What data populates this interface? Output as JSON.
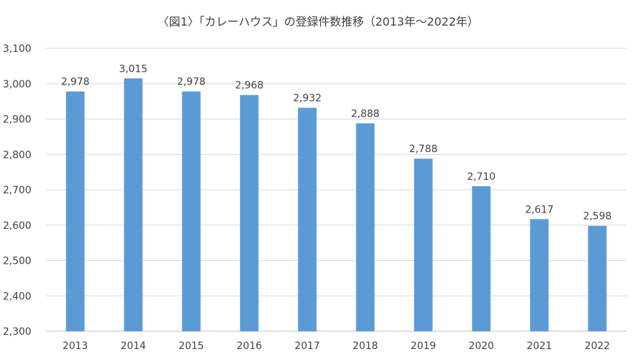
{
  "chart_data": {
    "type": "bar",
    "title": "〈図1〉「カレーハウス」の登録件数推移（2013年～2022年）",
    "categories": [
      "2013",
      "2014",
      "2015",
      "2016",
      "2017",
      "2018",
      "2019",
      "2020",
      "2021",
      "2022"
    ],
    "values": [
      2978,
      3015,
      2978,
      2968,
      2932,
      2888,
      2788,
      2710,
      2617,
      2598
    ],
    "value_labels": [
      "2,978",
      "3,015",
      "2,978",
      "2,968",
      "2,932",
      "2,888",
      "2,788",
      "2,710",
      "2,617",
      "2,598"
    ],
    "ylim": [
      2300,
      3100
    ],
    "yticks": [
      2300,
      2400,
      2500,
      2600,
      2700,
      2800,
      2900,
      3000,
      3100
    ],
    "ytick_labels": [
      "2,300",
      "2,400",
      "2,500",
      "2,600",
      "2,700",
      "2,800",
      "2,900",
      "3,000",
      "3,100"
    ],
    "grid": true,
    "bar_color": "#5b9bd5"
  }
}
